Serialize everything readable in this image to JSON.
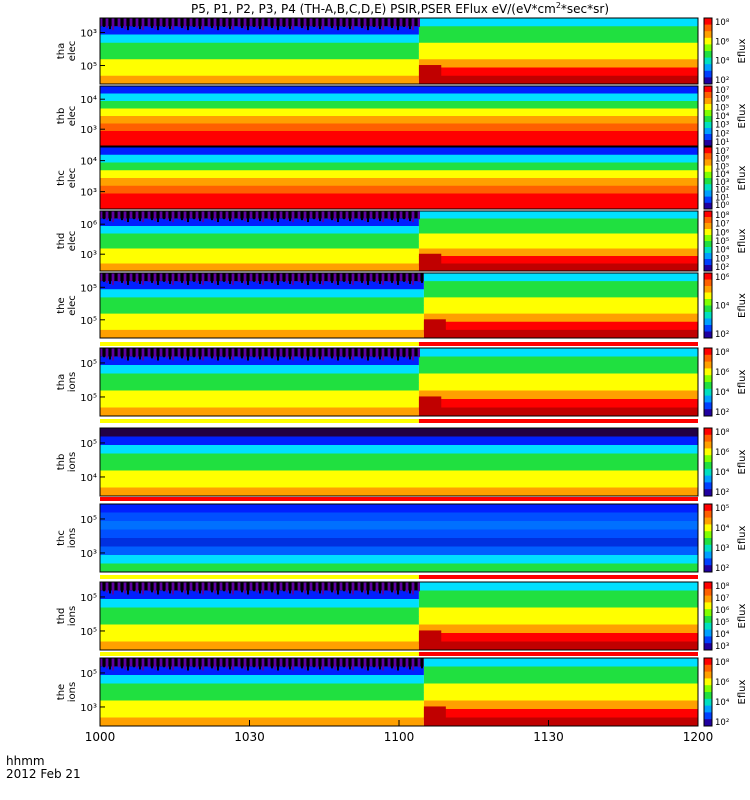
{
  "title": "P5, P1, P2, P3, P4 (TH-A,B,C,D,E) PSIR,PSER EFlux eV/(eV*cm",
  "title_sup": "2",
  "title_end": "*sec*sr)",
  "colorbar_label": "Eflux",
  "time_axis": {
    "ticks": [
      "1000",
      "1030",
      "1100",
      "1130",
      "1200"
    ],
    "range": [
      "10:00",
      "12:00"
    ],
    "unit_label": "hhmm",
    "date_label": "2012 Feb 21"
  },
  "colors": {
    "dark_purple": "#220044",
    "blue": "#0020ff",
    "cyan": "#00e0ff",
    "green": "#20e040",
    "yellow": "#ffff00",
    "red": "#ff0000",
    "dark_red": "#c00000",
    "flag_yellow": "#ffff00",
    "flag_red": "#ff0000"
  },
  "chart_data": [
    {
      "type": "heatmap",
      "title": "tha elec",
      "ylabel": [
        "tha",
        "elec"
      ],
      "y_ticks": [
        "10³",
        "10⁵"
      ],
      "cbar_ticks": [
        "10²",
        "10⁴",
        "10⁶",
        "10⁸"
      ],
      "event_time": "11:04",
      "flag": null
    },
    {
      "type": "heatmap",
      "title": "thb elec",
      "ylabel": [
        "thb",
        "elec"
      ],
      "y_ticks": [
        "10⁴",
        "10³"
      ],
      "cbar_ticks": [
        "10¹",
        "10²",
        "10³",
        "10⁴",
        "10⁵",
        "10⁶",
        "10⁷"
      ],
      "event_time": null,
      "flag": null
    },
    {
      "type": "heatmap",
      "title": "thc elec",
      "ylabel": [
        "thc",
        "elec"
      ],
      "y_ticks": [
        "10⁴",
        "10³"
      ],
      "cbar_ticks": [
        "10⁰",
        "10¹",
        "10²",
        "10³",
        "10⁴",
        "10⁵",
        "10⁶",
        "10⁷"
      ],
      "event_time": null,
      "flag": null
    },
    {
      "type": "heatmap",
      "title": "thd elec",
      "ylabel": [
        "thd",
        "elec"
      ],
      "y_ticks": [
        "10⁶",
        "10³"
      ],
      "cbar_ticks": [
        "10²",
        "10³",
        "10⁴",
        "10⁵",
        "10⁶",
        "10⁷",
        "10⁸"
      ],
      "event_time": "11:04",
      "flag": null
    },
    {
      "type": "heatmap",
      "title": "the elec",
      "ylabel": [
        "the",
        "elec"
      ],
      "y_ticks": [
        "10⁵",
        "10⁵"
      ],
      "cbar_ticks": [
        "10²",
        "10⁴",
        "10⁶"
      ],
      "event_time": "11:05",
      "flag": {
        "red_from": "11:04"
      }
    },
    {
      "type": "heatmap",
      "title": "tha ions",
      "ylabel": [
        "tha",
        "ions"
      ],
      "y_ticks": [
        "10⁵",
        "10⁵"
      ],
      "cbar_ticks": [
        "10²",
        "10⁴",
        "10⁶",
        "10⁸"
      ],
      "event_time": "11:04",
      "flag": {
        "red_from": "11:04"
      }
    },
    {
      "type": "heatmap",
      "title": "thb ions",
      "ylabel": [
        "thb",
        "ions"
      ],
      "y_ticks": [
        "10⁵",
        "10⁴"
      ],
      "cbar_ticks": [
        "10²",
        "10⁴",
        "10⁶",
        "10⁸"
      ],
      "event_time": null,
      "flag": {
        "red_from": "10:00"
      }
    },
    {
      "type": "heatmap",
      "title": "thc ions",
      "ylabel": [
        "thc",
        "ions"
      ],
      "y_ticks": [
        "10⁵",
        "10³"
      ],
      "cbar_ticks": [
        "10²",
        "10³",
        "10⁴",
        "10⁵"
      ],
      "event_time": null,
      "flag": {
        "red_from": "11:04"
      }
    },
    {
      "type": "heatmap",
      "title": "thd ions",
      "ylabel": [
        "thd",
        "ions"
      ],
      "y_ticks": [
        "10⁵",
        "10⁵"
      ],
      "cbar_ticks": [
        "10³",
        "10⁴",
        "10⁵",
        "10⁶",
        "10⁷",
        "10⁸"
      ],
      "event_time": "11:04",
      "flag": {
        "red_from": "11:04"
      }
    },
    {
      "type": "heatmap",
      "title": "the ions",
      "ylabel": [
        "the",
        "ions"
      ],
      "y_ticks": [
        "10⁵",
        "10³"
      ],
      "cbar_ticks": [
        "10²",
        "10⁴",
        "10⁶",
        "10⁸"
      ],
      "event_time": "11:05",
      "flag": null
    }
  ]
}
